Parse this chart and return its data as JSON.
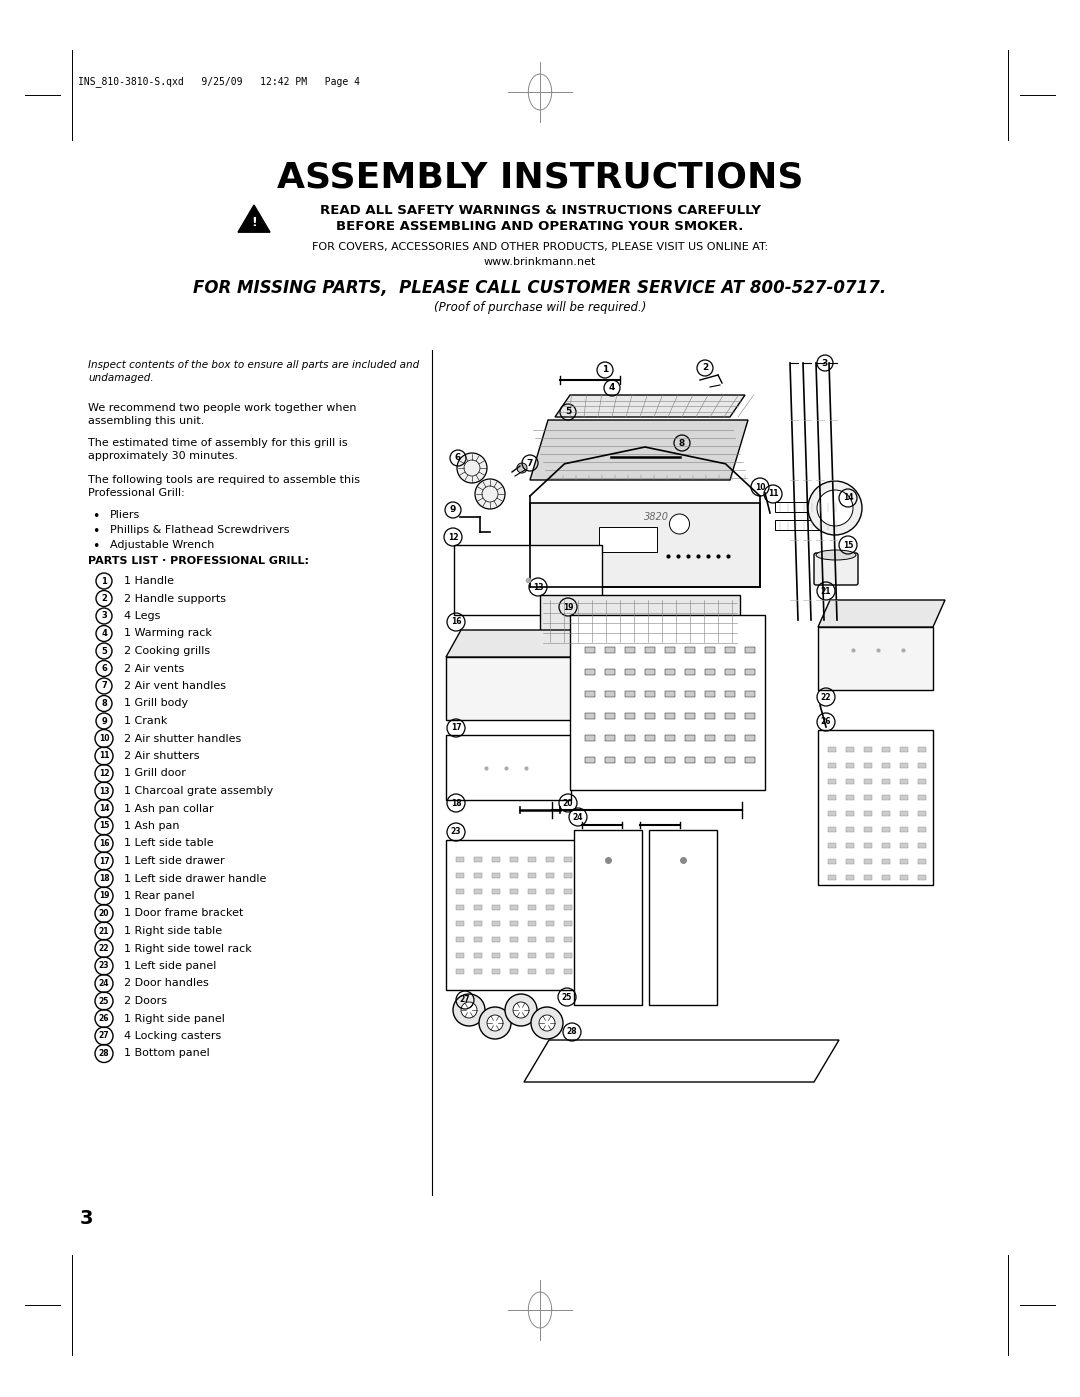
{
  "bg_color": "#ffffff",
  "title": "ASSEMBLY INSTRUCTIONS",
  "warning_line1": "READ ALL SAFETY WARNINGS & INSTRUCTIONS CAREFULLY",
  "warning_line2": "BEFORE ASSEMBLING AND OPERATING YOUR SMOKER.",
  "online_line1": "FOR COVERS, ACCESSORIES AND OTHER PRODUCTS, PLEASE VISIT US ONLINE AT:",
  "online_line2": "www.brinkmann.net",
  "missing_parts": "FOR MISSING PARTS,  PLEASE CALL CUSTOMER SERVICE AT 800-527-0717.",
  "proof": "(Proof of purchase will be required.)",
  "header_meta": "INS_810-3810-S.qxd   9/25/09   12:42 PM   Page 4",
  "inspect_text": "Inspect contents of the box to ensure all parts are included and\nundamaged.",
  "para1": "We recommend two people work together when\nassembling this unit.",
  "para2": "The estimated time of assembly for this grill is\napproximately 30 minutes.",
  "para3": "The following tools are required to assemble this\nProfessional Grill:",
  "tools": [
    "Pliers",
    "Phillips & Flathead Screwdrivers",
    "Adjustable Wrench"
  ],
  "parts_header": "PARTS LIST · PROFESSIONAL GRILL:",
  "parts": [
    "1 Handle",
    "2 Handle supports",
    "4 Legs",
    "1 Warming rack",
    "2 Cooking grills",
    "2 Air vents",
    "2 Air vent handles",
    "1 Grill body",
    "1 Crank",
    "2 Air shutter handles",
    "2 Air shutters",
    "1 Grill door",
    "1 Charcoal grate assembly",
    "1 Ash pan collar",
    "1 Ash pan",
    "1 Left side table",
    "1 Left side drawer",
    "1 Left side drawer handle",
    "1 Rear panel",
    "1 Door frame bracket",
    "1 Right side table",
    "1 Right side towel rack",
    "1 Left side panel",
    "2 Door handles",
    "2 Doors",
    "1 Right side panel",
    "4 Locking casters",
    "1 Bottom panel"
  ],
  "page_number": "3",
  "title_fontsize": 26,
  "warning_fontsize": 9,
  "missing_parts_fontsize": 12,
  "body_fontsize": 8,
  "parts_fontsize": 8,
  "header_fontsize": 7
}
